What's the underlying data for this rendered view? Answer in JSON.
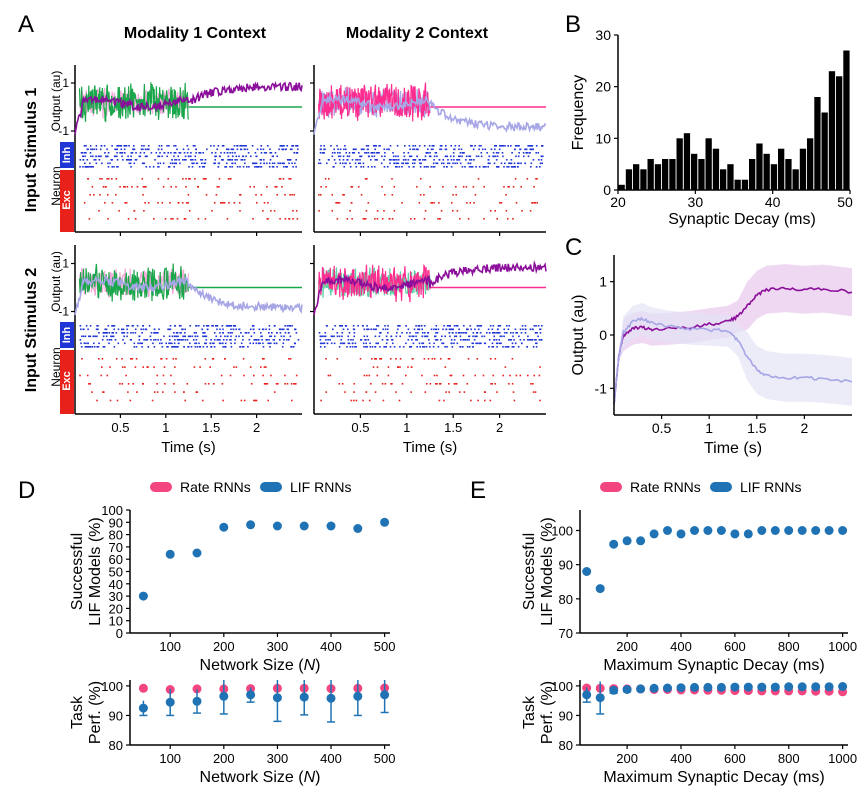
{
  "panel_labels": {
    "A": "A",
    "B": "B",
    "C": "C",
    "D": "D",
    "E": "E"
  },
  "colors": {
    "green": "#1aa64a",
    "green_light": "#5fd1a6",
    "pink": "#ff2d8f",
    "pink_light": "#f3a8d8",
    "purple": "#8b0f9a",
    "lavender": "#a6a6e6",
    "inh_blue": "#1f35d6",
    "exc_red": "#e8211b",
    "rate_pink": "#f3457f",
    "lif_blue": "#1f73b4"
  },
  "panel_a": {
    "col_titles": [
      "Modality 1 Context",
      "Modality 2 Context"
    ],
    "row_titles": [
      "Input Stimulus 1",
      "Input Stimulus 2"
    ],
    "output_ylabel": "Output (au)",
    "neuron_ylabel": "Neuron",
    "inh_label": "Inh",
    "exc_label": "Exc",
    "yticks": [
      "1",
      "-1"
    ],
    "xticks": [
      "0.5",
      "1",
      "1.5",
      "2"
    ],
    "xlabel": "Time (s)"
  },
  "chart_data": [
    {
      "id": "B",
      "type": "bar",
      "xlabel": "Synaptic Decay (ms)",
      "ylabel": "Frequency",
      "xticks": [
        "20",
        "30",
        "40",
        "50"
      ],
      "yticks": [
        "0",
        "10",
        "20",
        "30"
      ],
      "ylim": [
        0,
        30
      ],
      "xlim": [
        20,
        50
      ],
      "bin_start": 20,
      "bin_width": 1,
      "values": [
        1,
        4,
        5,
        4,
        6,
        5,
        6,
        6,
        10,
        11,
        7,
        6,
        10,
        8,
        4,
        5,
        2,
        2,
        6,
        9,
        7,
        5,
        8,
        6,
        4,
        8,
        10,
        18,
        15,
        23,
        22,
        27
      ]
    },
    {
      "id": "C",
      "type": "line",
      "xlabel": "Time (s)",
      "ylabel": "Output (au)",
      "xticks": [
        "0.5",
        "1",
        "1.5",
        "2"
      ],
      "yticks": [
        "1",
        "0",
        "-1"
      ],
      "ylim": [
        -1.5,
        1.5
      ],
      "xlim": [
        0,
        2.5
      ],
      "series": [
        {
          "color": "#8b0f9a",
          "band": "#e7c8ec",
          "x": [
            0,
            0.05,
            0.1,
            0.2,
            0.3,
            0.4,
            0.6,
            0.8,
            1.0,
            1.2,
            1.3,
            1.4,
            1.5,
            1.6,
            1.8,
            2.0,
            2.2,
            2.5
          ],
          "y": [
            -1.3,
            -0.4,
            0.0,
            0.12,
            0.15,
            0.1,
            0.12,
            0.15,
            0.2,
            0.25,
            0.35,
            0.55,
            0.75,
            0.85,
            0.88,
            0.85,
            0.87,
            0.8
          ]
        },
        {
          "color": "#a6a6e6",
          "band": "#e4e4f6",
          "x": [
            0,
            0.05,
            0.1,
            0.2,
            0.3,
            0.4,
            0.6,
            0.8,
            1.0,
            1.2,
            1.3,
            1.4,
            1.5,
            1.6,
            1.8,
            2.0,
            2.2,
            2.5
          ],
          "y": [
            -1.3,
            -0.4,
            0.05,
            0.25,
            0.3,
            0.22,
            0.15,
            0.12,
            0.1,
            0.08,
            -0.1,
            -0.4,
            -0.65,
            -0.75,
            -0.8,
            -0.8,
            -0.82,
            -0.88
          ]
        }
      ]
    },
    {
      "id": "D-top",
      "type": "scatter",
      "xlabel_parts": [
        "Network Size (",
        "N",
        ")"
      ],
      "ylabel": [
        "Successful",
        "LIF Models (%)"
      ],
      "legend": [
        "Rate RNNs",
        "LIF RNNs"
      ],
      "xticks": [
        "100",
        "200",
        "300",
        "400",
        "500"
      ],
      "yticks": [
        "0",
        "10",
        "20",
        "30",
        "40",
        "50",
        "60",
        "70",
        "80",
        "90",
        "100"
      ],
      "xlim": [
        25,
        510
      ],
      "ylim": [
        0,
        100
      ],
      "series": [
        {
          "name": "LIF RNNs",
          "x": [
            50,
            100,
            150,
            200,
            250,
            300,
            350,
            400,
            450,
            500
          ],
          "y": [
            30,
            64,
            65,
            86,
            88,
            87,
            87,
            87,
            85,
            90
          ]
        }
      ]
    },
    {
      "id": "D-bottom",
      "type": "scatter",
      "xlabel_parts": [
        "Network Size (",
        "N",
        ")"
      ],
      "ylabel": [
        "Task",
        "Perf. (%)"
      ],
      "xticks": [
        "100",
        "200",
        "300",
        "400",
        "500"
      ],
      "yticks": [
        "80",
        "90",
        "100"
      ],
      "xlim": [
        25,
        510
      ],
      "ylim": [
        80,
        102
      ],
      "series": [
        {
          "name": "Rate RNNs",
          "x": [
            50,
            100,
            150,
            200,
            250,
            300,
            350,
            400,
            450,
            500
          ],
          "y": [
            99.2,
            98.8,
            99.0,
            99.0,
            99.1,
            99.2,
            99.2,
            99.1,
            99.2,
            99.3
          ]
        },
        {
          "name": "LIF RNNs",
          "x": [
            50,
            100,
            150,
            200,
            250,
            300,
            350,
            400,
            450,
            500
          ],
          "y": [
            92.5,
            94.5,
            94.8,
            96.5,
            97.0,
            96.0,
            96.2,
            95.8,
            96.5,
            97.0
          ],
          "err": [
            2.5,
            4.5,
            4.0,
            6.0,
            2.5,
            8.0,
            6.0,
            8.0,
            6.5,
            6.0
          ]
        }
      ]
    },
    {
      "id": "E-top",
      "type": "scatter",
      "xlabel": "Maximum Synaptic Decay (ms)",
      "ylabel": [
        "Successful",
        "LIF Models (%)"
      ],
      "legend": [
        "Rate RNNs",
        "LIF RNNs"
      ],
      "xticks": [
        "200",
        "400",
        "600",
        "800",
        "1000"
      ],
      "yticks": [
        "70",
        "80",
        "90",
        "100"
      ],
      "xlim": [
        25,
        1020
      ],
      "ylim": [
        70,
        106
      ],
      "series": [
        {
          "name": "LIF RNNs",
          "x": [
            50,
            100,
            150,
            200,
            250,
            300,
            350,
            400,
            450,
            500,
            550,
            600,
            650,
            700,
            750,
            800,
            850,
            900,
            950,
            1000
          ],
          "y": [
            88,
            83,
            96,
            97,
            97,
            99,
            100,
            99,
            100,
            100,
            100,
            99,
            99,
            100,
            100,
            100,
            100,
            100,
            100,
            100
          ]
        }
      ]
    },
    {
      "id": "E-bottom",
      "type": "scatter",
      "xlabel": "Maximum Synaptic Decay (ms)",
      "ylabel": [
        "Task",
        "Perf. (%)"
      ],
      "xticks": [
        "200",
        "400",
        "600",
        "800",
        "1000"
      ],
      "yticks": [
        "80",
        "90",
        "100"
      ],
      "xlim": [
        25,
        1020
      ],
      "ylim": [
        80,
        102
      ],
      "series": [
        {
          "name": "Rate RNNs",
          "x": [
            50,
            100,
            150,
            200,
            250,
            300,
            350,
            400,
            450,
            500,
            550,
            600,
            650,
            700,
            750,
            800,
            850,
            900,
            950,
            1000
          ],
          "y": [
            99.3,
            99.2,
            99.1,
            99.0,
            99.0,
            98.8,
            98.8,
            98.6,
            98.6,
            98.5,
            98.5,
            98.4,
            98.4,
            98.3,
            98.3,
            98.3,
            98.3,
            98.2,
            98.2,
            98.0
          ]
        },
        {
          "name": "LIF RNNs",
          "x": [
            50,
            100,
            150,
            200,
            250,
            300,
            350,
            400,
            450,
            500,
            550,
            600,
            650,
            700,
            750,
            800,
            850,
            900,
            950,
            1000
          ],
          "y": [
            97.0,
            96.0,
            98.5,
            98.8,
            99.0,
            99.2,
            99.3,
            99.4,
            99.5,
            99.5,
            99.5,
            99.6,
            99.6,
            99.6,
            99.6,
            99.7,
            99.7,
            99.7,
            99.7,
            99.8
          ],
          "err": [
            2.5,
            5.5,
            1.0,
            0.8,
            0.6,
            0.5,
            0.5,
            0.4,
            0.4,
            0.4,
            0.4,
            0.3,
            0.3,
            0.3,
            0.3,
            0.3,
            0.3,
            0.3,
            0.3,
            0.3
          ]
        }
      ]
    }
  ]
}
